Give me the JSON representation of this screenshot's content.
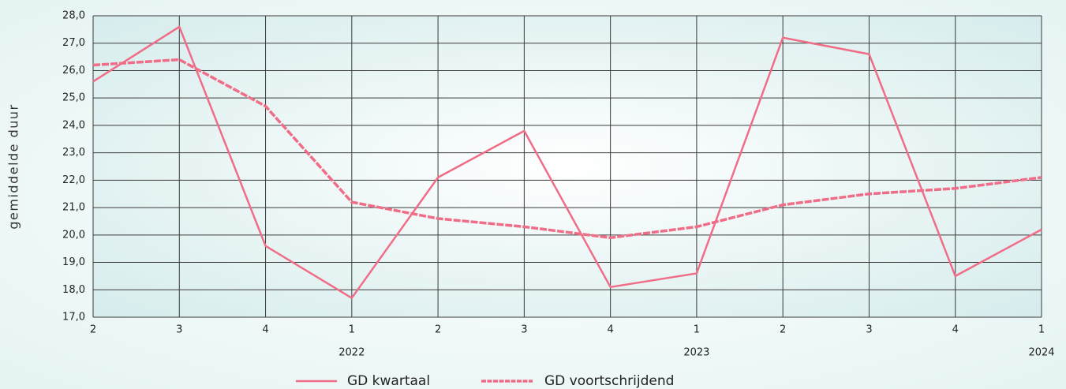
{
  "chart_data": {
    "type": "line",
    "y_label": "gemiddelde duur",
    "categories": [
      "2",
      "3",
      "4",
      "1",
      "2",
      "3",
      "4",
      "1",
      "2",
      "3",
      "4",
      "1"
    ],
    "year_labels": [
      null,
      null,
      null,
      "2022",
      null,
      null,
      null,
      "2023",
      null,
      null,
      null,
      "2024"
    ],
    "series": [
      {
        "name": "GD kwartaal",
        "color": "#f06d88",
        "dashed": false,
        "values": [
          25.6,
          27.6,
          19.6,
          17.7,
          22.1,
          23.8,
          18.1,
          18.6,
          27.2,
          26.6,
          18.5,
          20.2
        ]
      },
      {
        "name": "GD voortschrijdend",
        "color": "#f06d88",
        "dashed": true,
        "values": [
          26.2,
          26.4,
          24.7,
          21.2,
          20.6,
          20.3,
          19.9,
          20.3,
          21.1,
          21.5,
          21.7,
          22.1
        ]
      }
    ],
    "ylim": [
      17,
      28
    ],
    "yticks": [
      {
        "value": 17,
        "label": "17,0"
      },
      {
        "value": 18,
        "label": "18,0"
      },
      {
        "value": 19,
        "label": "19,0"
      },
      {
        "value": 20,
        "label": "20,0"
      },
      {
        "value": 21,
        "label": "21,0"
      },
      {
        "value": 22,
        "label": "22,0"
      },
      {
        "value": 23,
        "label": "23,0"
      },
      {
        "value": 24,
        "label": "24,0"
      },
      {
        "value": 25,
        "label": "25,0"
      },
      {
        "value": 26,
        "label": "26,0"
      },
      {
        "value": 27,
        "label": "27,0"
      },
      {
        "value": 28,
        "label": "28,0"
      }
    ],
    "grid": true
  }
}
